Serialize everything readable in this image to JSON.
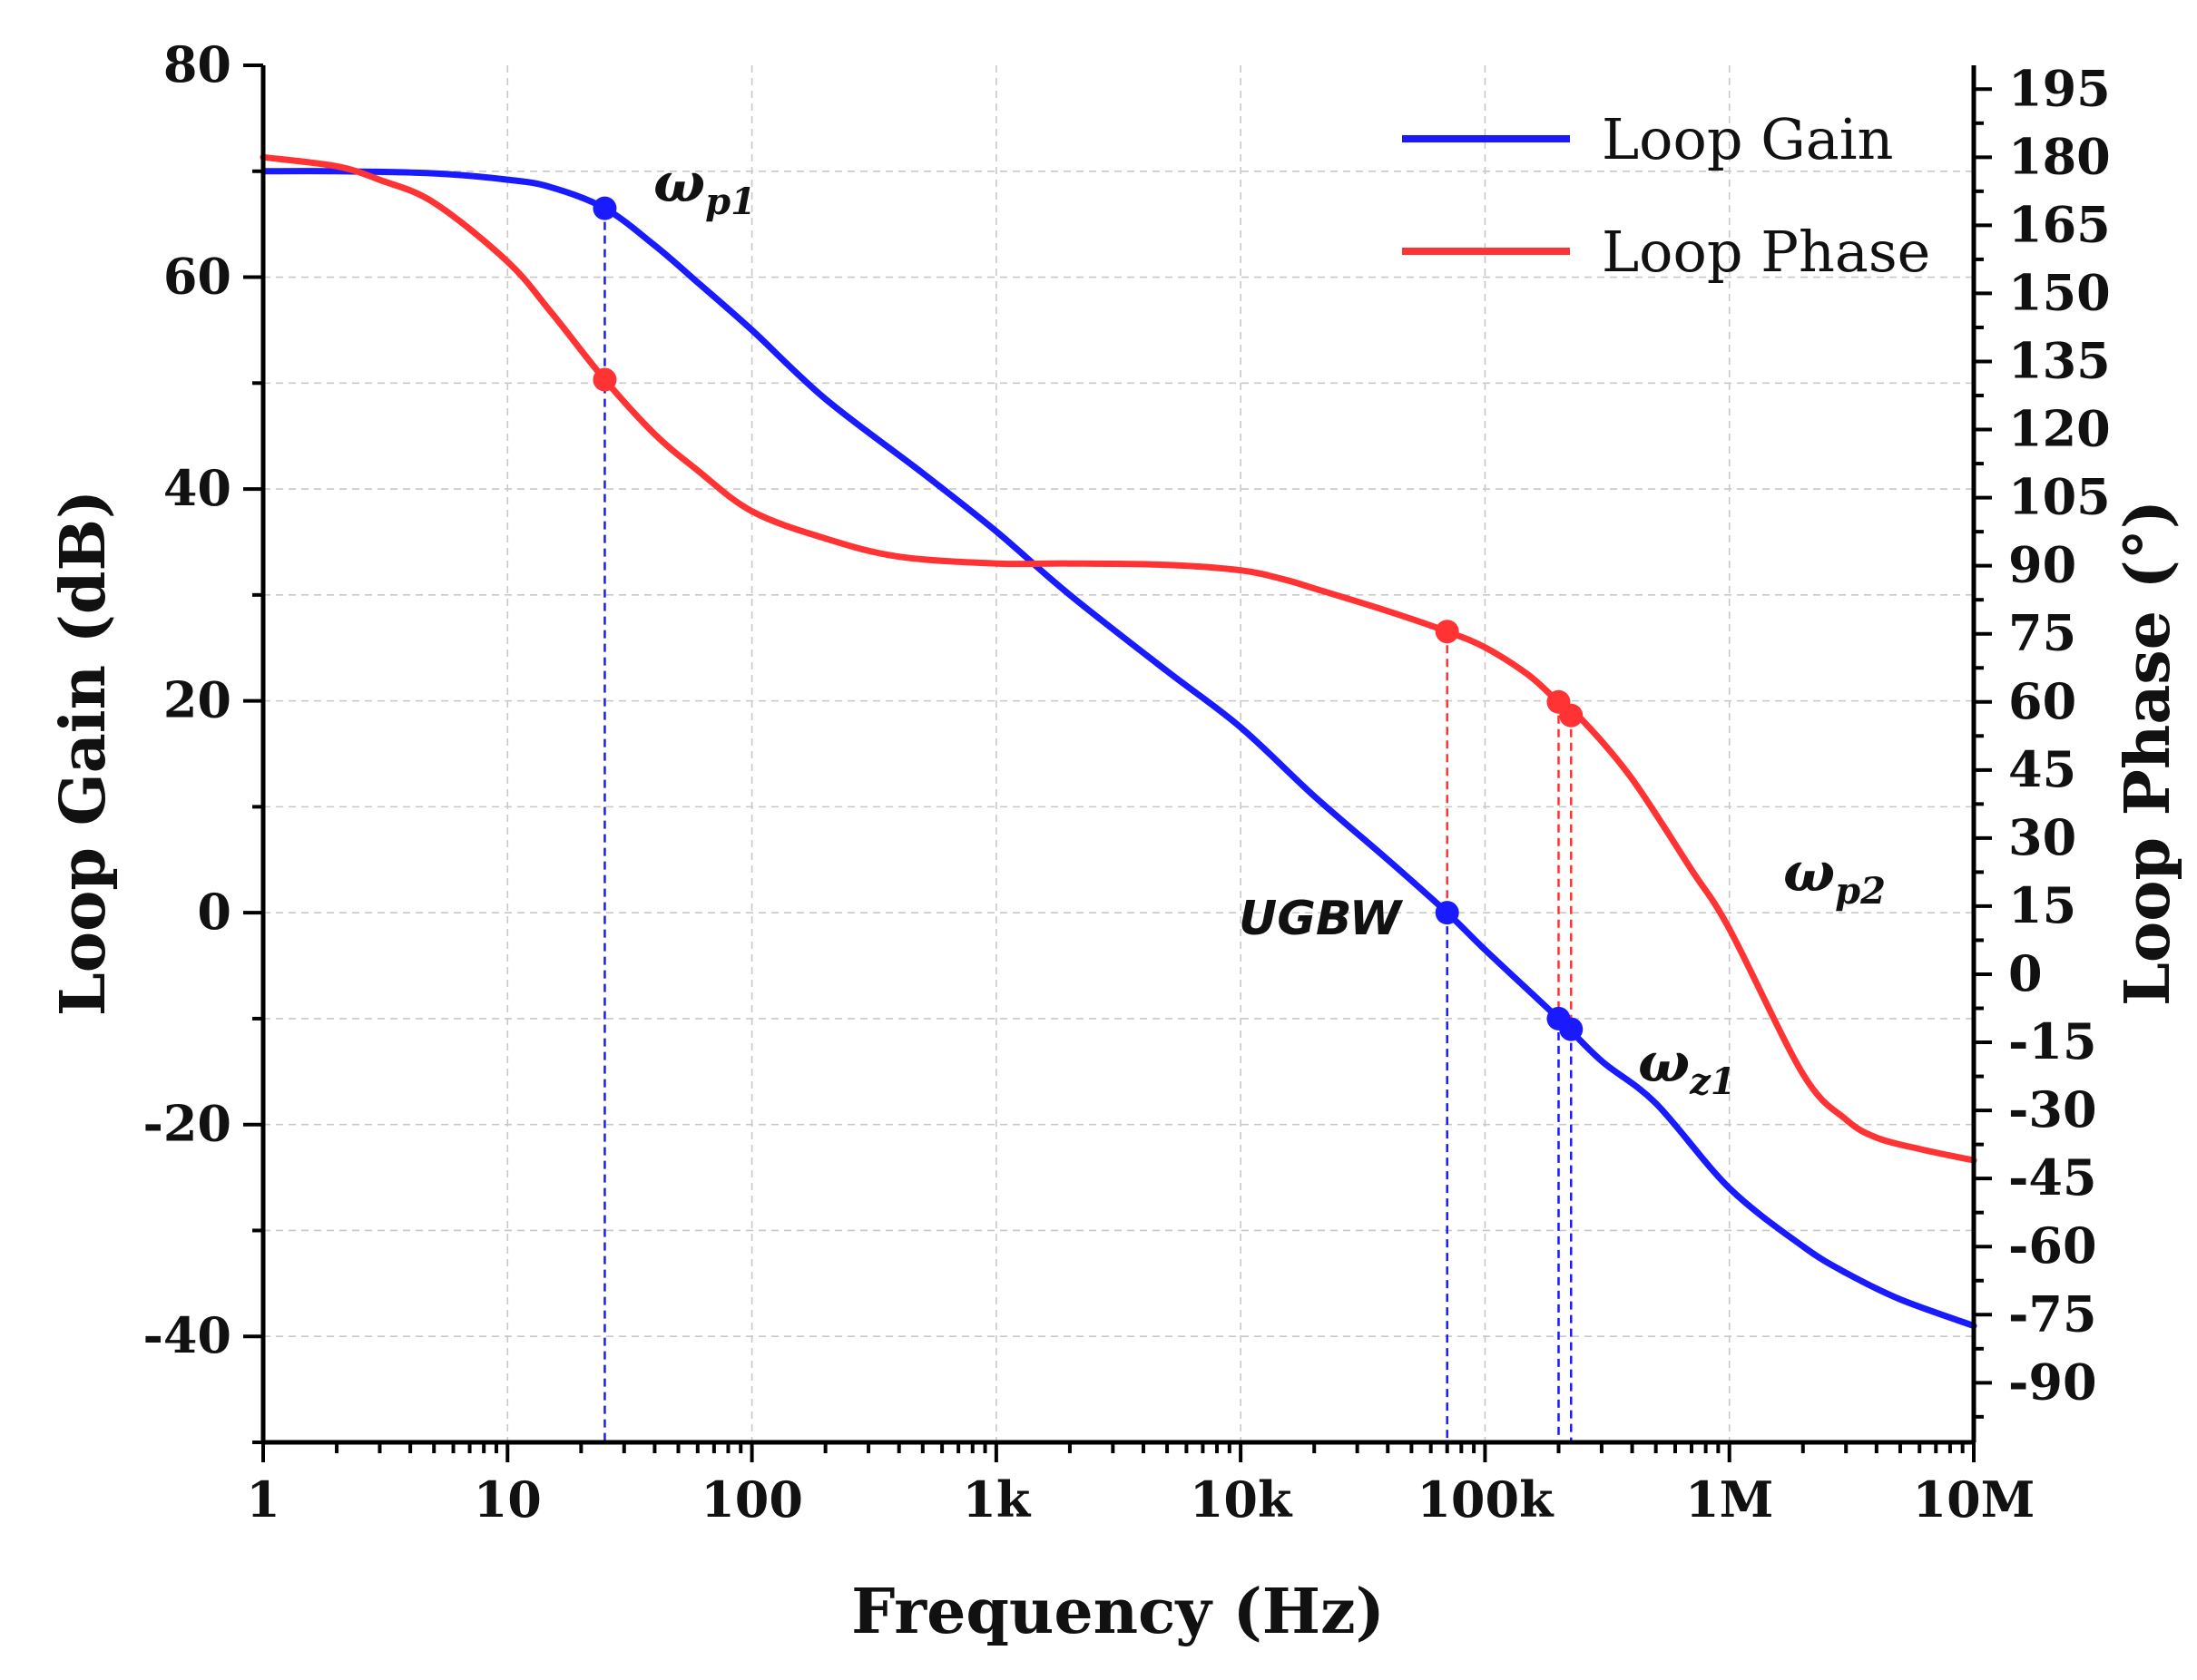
{
  "chart_data": {
    "type": "line",
    "x_scale": "log",
    "xlabel": "Frequency (Hz)",
    "ylabel": "Loop Gain (dB)",
    "ylabel_right": "Loop Phase (°)",
    "xlim": [
      1,
      10000000
    ],
    "ylim": [
      -50,
      80
    ],
    "ylim_right": [
      -103.125,
      200.25
    ],
    "x_ticks": [
      {
        "value": 1,
        "label": "1"
      },
      {
        "value": 10,
        "label": "10"
      },
      {
        "value": 100,
        "label": "100"
      },
      {
        "value": 1000,
        "label": "1k"
      },
      {
        "value": 10000,
        "label": "10k"
      },
      {
        "value": 100000,
        "label": "100k"
      },
      {
        "value": 1000000,
        "label": "1M"
      },
      {
        "value": 10000000,
        "label": "10M"
      }
    ],
    "y_ticks": [
      80,
      60,
      40,
      20,
      0,
      -20,
      -40
    ],
    "y_ticks_right": [
      195,
      180,
      165,
      150,
      135,
      120,
      105,
      90,
      75,
      60,
      45,
      30,
      15,
      0,
      -15,
      -30,
      -45,
      -60,
      -75,
      -90
    ],
    "grid": true,
    "legend_position": "top-right",
    "series": [
      {
        "name": "Loop Gain",
        "axis": "left",
        "color": "#1a1aff",
        "x": [
          1,
          2,
          5,
          10,
          15,
          25,
          40,
          60,
          100,
          200,
          500,
          1000,
          2000,
          5000,
          10000,
          20000,
          40000,
          70000,
          100000,
          200000,
          300000,
          500000,
          1000000,
          2000000,
          3000000,
          5000000,
          10000000
        ],
        "y": [
          70,
          70,
          69.8,
          69.2,
          68.5,
          66.5,
          63,
          59.5,
          55,
          48.5,
          41.5,
          36,
          30,
          22.8,
          17.5,
          11,
          5,
          0,
          -3.5,
          -10,
          -14,
          -18,
          -26,
          -31.5,
          -34,
          -36.5,
          -39
        ]
      },
      {
        "name": "Loop Phase",
        "axis": "right",
        "color": "#ff3333",
        "x": [
          1,
          2,
          3,
          5,
          10,
          15,
          25,
          40,
          60,
          100,
          200,
          400,
          1000,
          2000,
          5000,
          10000,
          15000,
          20000,
          40000,
          70000,
          100000,
          150000,
          200000,
          250000,
          400000,
          700000,
          1000000,
          2000000,
          3000000,
          4000000,
          6000000,
          10000000
        ],
        "y": [
          180,
          178,
          175,
          170,
          157,
          146,
          131,
          119,
          111,
          102,
          96,
          92,
          90.5,
          90.5,
          90.2,
          89,
          87,
          85,
          80,
          75.5,
          72,
          66,
          60,
          56,
          43,
          23,
          10,
          -22,
          -32,
          -36,
          -38.5,
          -41
        ]
      }
    ],
    "markers": [
      {
        "series": "Loop Gain",
        "x": 25,
        "y": 66.5
      },
      {
        "series": "Loop Phase",
        "x": 25,
        "y": 131
      },
      {
        "series": "Loop Gain",
        "x": 70000,
        "y": 0
      },
      {
        "series": "Loop Phase",
        "x": 70000,
        "y": 75.5
      },
      {
        "series": "Loop Gain",
        "x": 200000,
        "y": -10
      },
      {
        "series": "Loop Phase",
        "x": 200000,
        "y": 60
      },
      {
        "series": "Loop Gain",
        "x": 225000,
        "y": -11
      },
      {
        "series": "Loop Phase",
        "x": 225000,
        "y": 57
      }
    ],
    "drop_lines": [
      {
        "x": 25,
        "series": "Loop Gain"
      },
      {
        "x": 70000,
        "series": "Loop Gain"
      },
      {
        "x": 70000,
        "series": "Loop Phase",
        "to_y": 0
      },
      {
        "x": 200000,
        "series": "Loop Gain"
      },
      {
        "x": 200000,
        "series": "Loop Phase",
        "to_y": -10
      },
      {
        "x": 225000,
        "series": "Loop Gain"
      },
      {
        "x": 225000,
        "series": "Loop Phase",
        "to_y": -11
      }
    ],
    "annotations": {
      "wp1": {
        "main": "ω",
        "sub": "p1"
      },
      "ugbw": "UGBW",
      "wz1": {
        "main": "ω",
        "sub": "z1"
      },
      "wp2": {
        "main": "ω",
        "sub": "p2"
      }
    }
  }
}
